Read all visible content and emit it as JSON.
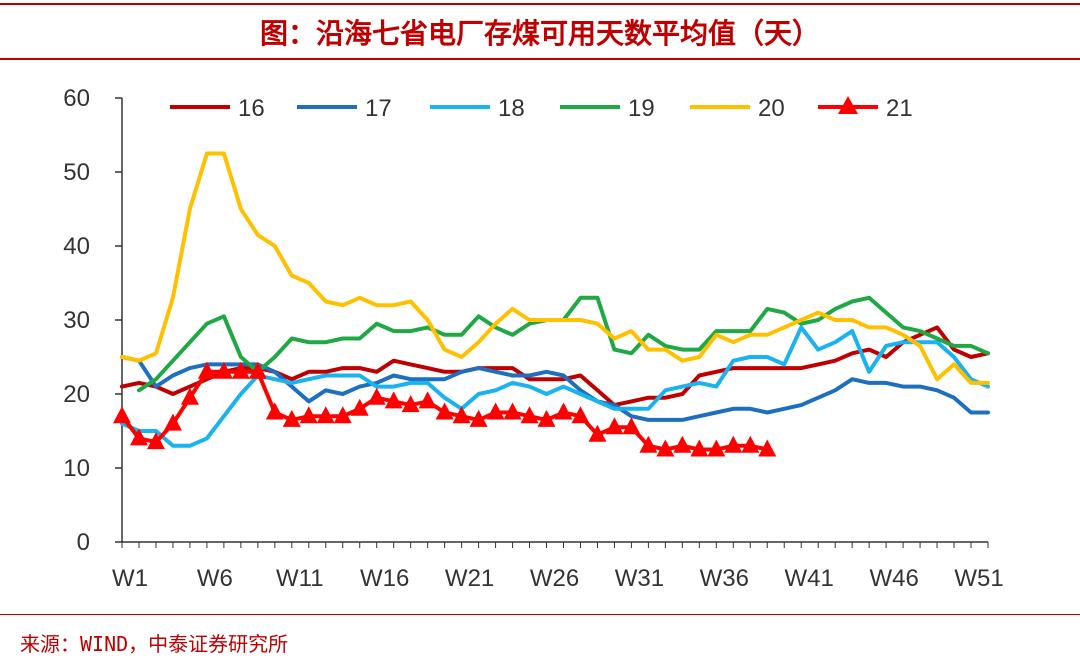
{
  "title": "图：沿海七省电厂存煤可用天数平均值（天）",
  "source": "来源：WIND，中泰证券研究所",
  "chart_data": {
    "type": "line",
    "title": "图：沿海七省电厂存煤可用天数平均值（天）",
    "xlabel": "",
    "ylabel": "",
    "ylim": [
      0,
      60
    ],
    "yticks": [
      "0",
      "10",
      "20",
      "30",
      "40",
      "50",
      "60"
    ],
    "xrange": [
      1,
      52
    ],
    "xticks": [
      {
        "week": 1,
        "label": "W1"
      },
      {
        "week": 6,
        "label": "W6"
      },
      {
        "week": 11,
        "label": "W11"
      },
      {
        "week": 16,
        "label": "W16"
      },
      {
        "week": 21,
        "label": "W21"
      },
      {
        "week": 26,
        "label": "W26"
      },
      {
        "week": 31,
        "label": "W31"
      },
      {
        "week": 36,
        "label": "W36"
      },
      {
        "week": 41,
        "label": "W41"
      },
      {
        "week": 46,
        "label": "W46"
      },
      {
        "week": 51,
        "label": "W51"
      }
    ],
    "grid": false,
    "legend": "top",
    "series": [
      {
        "name": "16",
        "color": "#c00000",
        "marker": "none",
        "x": [
          1,
          2,
          3,
          4,
          5,
          6,
          7,
          8,
          9,
          10,
          11,
          12,
          13,
          14,
          15,
          16,
          17,
          18,
          19,
          20,
          21,
          22,
          23,
          24,
          25,
          26,
          27,
          28,
          29,
          30,
          31,
          32,
          33,
          34,
          35,
          36,
          37,
          38,
          39,
          40,
          41,
          42,
          43,
          44,
          45,
          46,
          47,
          48,
          49,
          50,
          51,
          52
        ],
        "values": [
          21,
          21.5,
          21,
          20,
          21,
          22,
          23,
          23.5,
          23.5,
          23,
          22,
          23,
          23,
          23.5,
          23.5,
          23,
          24.5,
          24,
          23.5,
          23,
          23,
          23.5,
          23.5,
          23.5,
          22,
          22,
          22,
          22.5,
          20.5,
          18.5,
          19,
          19.5,
          19.5,
          20,
          22.5,
          23,
          23.5,
          23.5,
          23.5,
          23.5,
          23.5,
          24,
          24.5,
          25.5,
          26,
          25,
          27,
          28,
          29,
          26,
          25,
          25.5
        ]
      },
      {
        "name": "17",
        "color": "#1f6fbf",
        "marker": "none",
        "x": [
          1,
          2,
          3,
          4,
          5,
          6,
          7,
          8,
          9,
          10,
          11,
          12,
          13,
          14,
          15,
          16,
          17,
          18,
          19,
          20,
          21,
          22,
          23,
          24,
          25,
          26,
          27,
          28,
          29,
          30,
          31,
          32,
          33,
          34,
          35,
          36,
          37,
          38,
          39,
          40,
          41,
          42,
          43,
          44,
          45,
          46,
          47,
          48,
          49,
          50,
          51,
          52
        ],
        "values": [
          25,
          24.5,
          21,
          22.5,
          23.5,
          24,
          24,
          24,
          24,
          23,
          21,
          19,
          20.5,
          20,
          21,
          21.5,
          22.5,
          22,
          22,
          22,
          23,
          23.5,
          23,
          22.5,
          22.5,
          23,
          22.5,
          20.5,
          19,
          18.5,
          17,
          16.5,
          16.5,
          16.5,
          17,
          17.5,
          18,
          18,
          17.5,
          18,
          18.5,
          19.5,
          20.5,
          22,
          21.5,
          21.5,
          21,
          21,
          20.5,
          19.5,
          17.5,
          17.5
        ]
      },
      {
        "name": "18",
        "color": "#1ab2ef",
        "marker": "none",
        "x": [
          1,
          2,
          3,
          4,
          5,
          6,
          7,
          8,
          9,
          10,
          11,
          12,
          13,
          14,
          15,
          16,
          17,
          18,
          19,
          20,
          21,
          22,
          23,
          24,
          25,
          26,
          27,
          28,
          29,
          30,
          31,
          32,
          33,
          34,
          35,
          36,
          37,
          38,
          39,
          40,
          41,
          42,
          43,
          44,
          45,
          46,
          47,
          48,
          49,
          50,
          51,
          52
        ],
        "values": [
          16,
          15,
          15,
          13,
          13,
          14,
          17,
          20,
          22.5,
          22,
          21.5,
          22,
          22.5,
          22.5,
          22.5,
          21,
          21,
          21.5,
          21.5,
          19.5,
          18,
          20,
          20.5,
          21.5,
          21,
          20,
          21,
          20,
          19,
          18,
          18,
          18,
          20.5,
          21,
          21.5,
          21,
          24.5,
          25,
          25,
          24,
          29,
          26,
          27,
          28.5,
          23,
          26.5,
          27,
          27,
          27,
          25,
          22,
          21
        ]
      },
      {
        "name": "19",
        "color": "#1fa843",
        "marker": "none",
        "x": [
          1,
          2,
          3,
          4,
          5,
          6,
          7,
          8,
          9,
          10,
          11,
          12,
          13,
          14,
          15,
          16,
          17,
          18,
          19,
          20,
          21,
          22,
          23,
          24,
          25,
          26,
          27,
          28,
          29,
          30,
          31,
          32,
          33,
          34,
          35,
          36,
          37,
          38,
          39,
          40,
          41,
          42,
          43,
          44,
          45,
          46,
          47,
          48,
          49,
          50,
          51,
          52
        ],
        "values": [
          null,
          20.5,
          22,
          24.5,
          27,
          29.5,
          30.5,
          25,
          23,
          25,
          27.5,
          27,
          27,
          27.5,
          27.5,
          29.5,
          28.5,
          28.5,
          29,
          28,
          28,
          30.5,
          29,
          28,
          29.5,
          30,
          30,
          33,
          33,
          26,
          25.5,
          28,
          26.5,
          26,
          26,
          28.5,
          28.5,
          28.5,
          31.5,
          31,
          29.5,
          30,
          31.5,
          32.5,
          33,
          31,
          29,
          28.5,
          27.5,
          26.5,
          26.5,
          25.5
        ]
      },
      {
        "name": "20",
        "color": "#ffc000",
        "marker": "none",
        "x": [
          1,
          2,
          3,
          4,
          5,
          6,
          7,
          8,
          9,
          10,
          11,
          12,
          13,
          14,
          15,
          16,
          17,
          18,
          19,
          20,
          21,
          22,
          23,
          24,
          25,
          26,
          27,
          28,
          29,
          30,
          31,
          32,
          33,
          34,
          35,
          36,
          37,
          38,
          39,
          40,
          41,
          42,
          43,
          44,
          45,
          46,
          47,
          48,
          49,
          50,
          51,
          52
        ],
        "values": [
          25,
          24.5,
          25.5,
          33,
          45,
          52.5,
          52.5,
          45,
          41.5,
          40,
          36,
          35,
          32.5,
          32,
          33,
          32,
          32,
          32.5,
          30,
          26,
          25,
          27,
          29.5,
          31.5,
          30,
          30,
          30,
          30,
          29.5,
          27.5,
          28.5,
          26,
          26,
          24.5,
          25,
          28,
          27,
          28,
          28,
          29,
          30,
          31,
          30,
          30,
          29,
          29,
          28,
          26.5,
          22,
          24,
          21.5,
          21.5
        ]
      },
      {
        "name": "21",
        "color": "#ff0000",
        "marker": "triangle",
        "x": [
          1,
          2,
          3,
          4,
          5,
          6,
          7,
          8,
          9,
          10,
          11,
          12,
          13,
          14,
          15,
          16,
          17,
          18,
          19,
          20,
          21,
          22,
          23,
          24,
          25,
          26,
          27,
          28,
          29,
          30,
          31,
          32,
          33,
          34,
          35,
          36,
          37,
          38,
          39
        ],
        "values": [
          17,
          14,
          13.5,
          16,
          19.5,
          23,
          23,
          23,
          23,
          17.5,
          16.5,
          17,
          17,
          17,
          18,
          19.5,
          19,
          18.5,
          19,
          17.5,
          17,
          16.5,
          17.5,
          17.5,
          17,
          16.5,
          17.5,
          17,
          14.5,
          15.5,
          15.5,
          13,
          12.5,
          13,
          12.5,
          12.5,
          13,
          13,
          12.5
        ]
      }
    ]
  }
}
